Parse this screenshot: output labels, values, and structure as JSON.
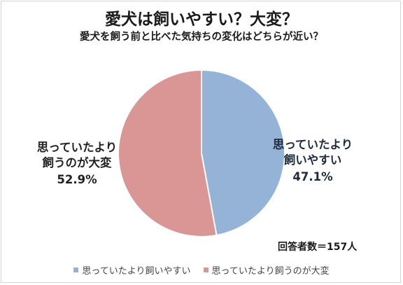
{
  "title": "愛犬は飼いやすい？大変？",
  "subtitle": "愛犬を飼う前と比べた気持ちの変化はどちらが近い？",
  "respondents": "回答者数＝157人",
  "chart_data": {
    "type": "pie",
    "title": "愛犬は飼いやすい？大変？",
    "subtitle": "愛犬を飼う前と比べた気持ちの変化はどちらが近い？",
    "start_angle_deg": 90,
    "direction": "clockwise",
    "legend_position": "bottom",
    "slices": [
      {
        "name": "思っていたより飼いやすい",
        "label_lines": [
          "思っていたより",
          "飼いやすい"
        ],
        "value": 47.1,
        "value_label": "47.1%",
        "color": "#95b3d7"
      },
      {
        "name": "思っていたより飼うのが大変",
        "label_lines": [
          "思っていたより",
          "飼うのが大変"
        ],
        "value": 52.9,
        "value_label": "52.9%",
        "color": "#d99694"
      }
    ]
  }
}
